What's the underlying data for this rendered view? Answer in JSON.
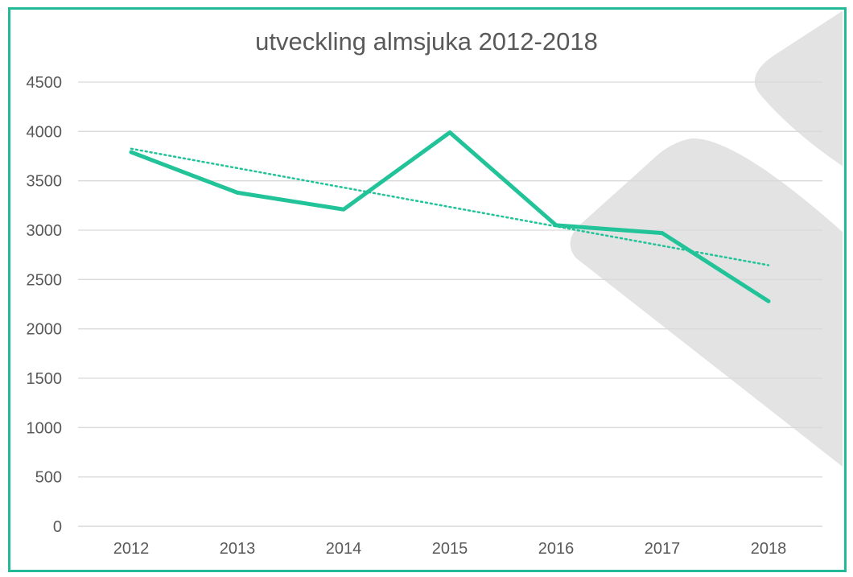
{
  "chart_data": {
    "type": "line",
    "title": "utveckling almsjuka 2012-2018",
    "xlabel": "",
    "ylabel": "",
    "categories": [
      "2012",
      "2013",
      "2014",
      "2015",
      "2016",
      "2017",
      "2018"
    ],
    "series": [
      {
        "name": "almsjuka",
        "values": [
          3790,
          3380,
          3210,
          3990,
          3050,
          2970,
          2280
        ]
      }
    ],
    "trendline": {
      "type": "linear",
      "style": "dotted",
      "start": 3825,
      "end": 2645
    },
    "ylim": [
      0,
      4500
    ],
    "yticks": [
      0,
      500,
      1000,
      1500,
      2000,
      2500,
      3000,
      3500,
      4000,
      4500
    ],
    "ytick_labels": [
      "0",
      "500",
      "1000",
      "1500",
      "2000",
      "2500",
      "3000",
      "3500",
      "4000",
      "4500"
    ],
    "grid": true,
    "legend": "none",
    "colors": {
      "line": "#22c398",
      "trendline": "#22c398",
      "border": "#26b999",
      "grid": "#d9d9d9",
      "text": "#595959",
      "decoration": "#e3e3e3"
    }
  }
}
